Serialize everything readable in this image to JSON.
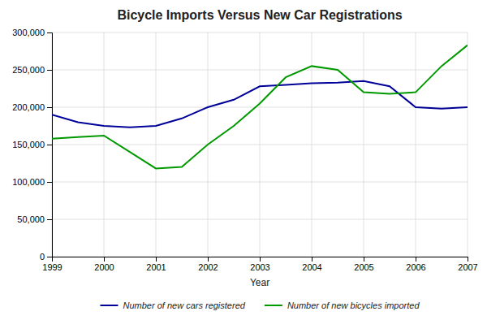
{
  "chart_data": {
    "type": "line",
    "title": "Bicycle Imports Versus New Car Registrations",
    "x_label": "Year",
    "x": [
      1999,
      1999.5,
      2000,
      2000.5,
      2001,
      2001.5,
      2002,
      2002.5,
      2003,
      2003.5,
      2004,
      2004.5,
      2005,
      2005.5,
      2006,
      2006.5,
      2007
    ],
    "series": [
      {
        "name": "Number of new cars registered",
        "color": "#000099",
        "values": [
          190000,
          180000,
          175000,
          173000,
          175000,
          185000,
          200000,
          210000,
          228000,
          230000,
          232000,
          233000,
          235000,
          228000,
          200000,
          198000,
          200000
        ]
      },
      {
        "name": "Number of new bicycles imported",
        "color": "#009900",
        "values": [
          158000,
          160000,
          162000,
          140000,
          118000,
          120000,
          150000,
          175000,
          205000,
          240000,
          255000,
          250000,
          220000,
          218000,
          220000,
          255000,
          283000
        ]
      }
    ],
    "xlim": [
      1999,
      2007
    ],
    "xticks": [
      1999,
      2000,
      2001,
      2002,
      2003,
      2004,
      2005,
      2006,
      2007
    ],
    "ylim": [
      0,
      300000
    ],
    "yticks": [
      0,
      {
        "value": 50000,
        "label": "50,000"
      },
      {
        "value": 100000,
        "label": "100,000"
      },
      {
        "value": 150000,
        "label": "150,000"
      },
      {
        "value": 200000,
        "label": "200,000"
      },
      {
        "value": 250000,
        "label": "250,000"
      },
      {
        "value": 300000,
        "label": "300,000"
      }
    ],
    "grid": true,
    "legend": "bottom"
  }
}
